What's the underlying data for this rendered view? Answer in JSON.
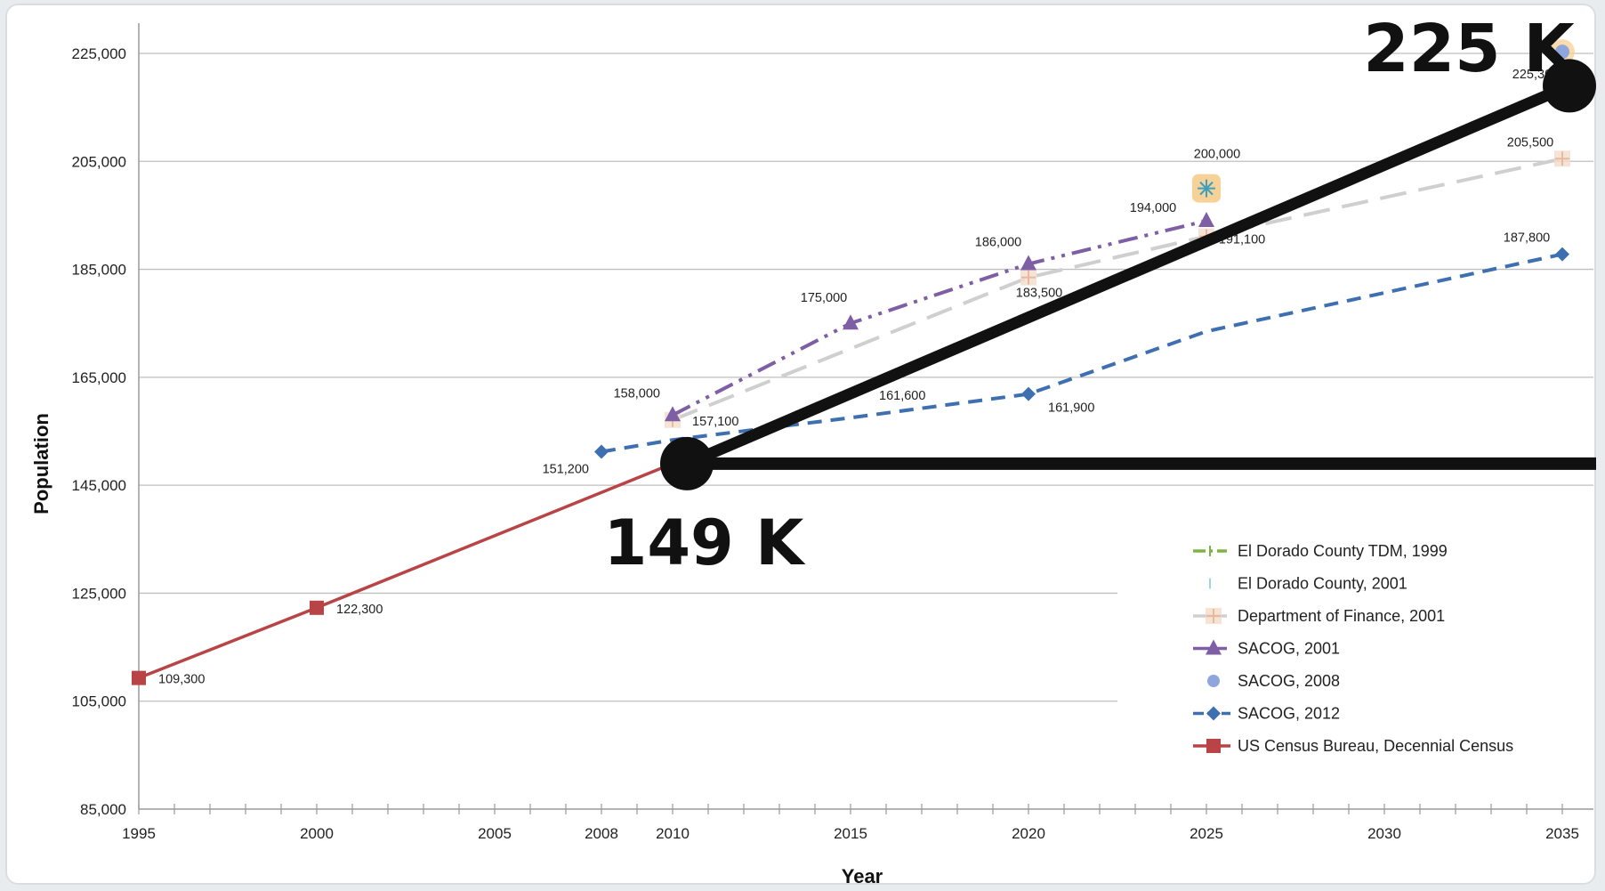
{
  "chart_data": {
    "type": "line",
    "xlabel": "Year",
    "ylabel": "Population",
    "x_ticks": [
      1995,
      2000,
      2005,
      2008,
      2010,
      2015,
      2020,
      2025,
      2030,
      2035
    ],
    "xlim": [
      1995,
      2035
    ],
    "y_ticks": [
      85000,
      105000,
      125000,
      145000,
      165000,
      185000,
      205000,
      225000
    ],
    "y_tick_labels": [
      "85,000",
      "105,000",
      "125,000",
      "145,000",
      "165,000",
      "185,000",
      "205,000",
      "225,000"
    ],
    "ylim": [
      85000,
      225000
    ],
    "grid": "horizontal",
    "legend_position": "bottom-right",
    "series": [
      {
        "name": "El Dorado County TDM, 1999",
        "color": "#7db443",
        "style": "dash-dot-plus",
        "points": []
      },
      {
        "name": "El Dorado County, 2001",
        "color": "#9ad7e8",
        "style": "dash-tick",
        "points": []
      },
      {
        "name": "Department of Finance, 2001",
        "color": "#cfcfcf",
        "marker_color": "#e8b9a0",
        "style": "long-dash-plus",
        "points": [
          {
            "x": 2010,
            "y": 157100,
            "label": "157,100"
          },
          {
            "x": 2020,
            "y": 183500,
            "label": "183,500"
          },
          {
            "x": 2025,
            "y": 191100,
            "label": "191,100"
          },
          {
            "x": 2035,
            "y": 205500,
            "label": "205,500"
          }
        ]
      },
      {
        "name": "SACOG, 2001",
        "color": "#7e5ea4",
        "style": "dash-dot-dot-triangle",
        "points": [
          {
            "x": 2010,
            "y": 158000,
            "label": "158,000"
          },
          {
            "x": 2015,
            "y": 175000,
            "label": "175,000"
          },
          {
            "x": 2020,
            "y": 186000,
            "label": "186,000"
          },
          {
            "x": 2025,
            "y": 194000,
            "label": "194,000"
          }
        ]
      },
      {
        "name": "SACOG, 2008",
        "color": "#8fa6dc",
        "style": "circle-marker",
        "points": [
          {
            "x": 2035,
            "y": 225300,
            "label": "225,300"
          }
        ]
      },
      {
        "name": "SACOG, 2012",
        "color": "#3e6fb0",
        "style": "dashed-diamond",
        "points": [
          {
            "x": 2008,
            "y": 151200,
            "label": "151,200"
          },
          {
            "x": 2010,
            "y": 153400,
            "label": ""
          },
          {
            "x": 2015,
            "y": 157500,
            "label": ""
          },
          {
            "x": 2020,
            "y": 161900,
            "label": "161,900"
          },
          {
            "x": 2025,
            "y": 173500,
            "label": ""
          },
          {
            "x": 2035,
            "y": 187800,
            "label": "187,800"
          }
        ]
      },
      {
        "name": "US Census Bureau, Decennial Census",
        "color": "#b94446",
        "style": "solid-square",
        "points": [
          {
            "x": 1995,
            "y": 109300,
            "label": "109,300"
          },
          {
            "x": 2000,
            "y": 122300,
            "label": "122,300"
          },
          {
            "x": 2010,
            "y": 149000,
            "label": ""
          }
        ]
      }
    ],
    "annotations": [
      {
        "x": 2025,
        "y": 200000,
        "label": "200,000",
        "marker": "asterisk",
        "color": "#3ca0c0",
        "highlight": "#f5c77e"
      },
      {
        "x": 2015,
        "y": 161600,
        "label": "161,600"
      }
    ],
    "callouts": {
      "low": {
        "label": "149 K",
        "x": 2010.4,
        "y": 149000
      },
      "high": {
        "label": "225 K",
        "x": 2035.2,
        "y": 219000
      },
      "line_color": "#111111"
    }
  }
}
